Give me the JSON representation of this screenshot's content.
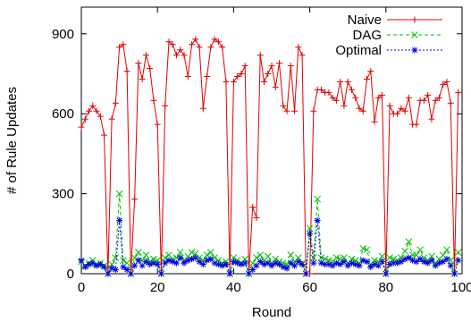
{
  "chart_data": {
    "type": "line",
    "xlabel": "Round",
    "ylabel": "# of Rule Updates",
    "xlim": [
      0,
      100
    ],
    "ylim": [
      0,
      1000
    ],
    "x_ticks": [
      "0",
      "20",
      "40",
      "60",
      "80",
      "100"
    ],
    "y_ticks": [
      "0",
      "300",
      "600",
      "900"
    ],
    "x_tick_values": [
      0,
      20,
      40,
      60,
      80,
      100
    ],
    "y_tick_values": [
      0,
      300,
      600,
      900
    ],
    "grid": false,
    "legend_position": "top-right",
    "series": [
      {
        "name": "Naive",
        "color": "#e00000",
        "dash": "",
        "marker": "plus",
        "x": [
          0,
          1,
          2,
          3,
          4,
          5,
          6,
          7,
          8,
          9,
          10,
          11,
          12,
          13,
          14,
          15,
          16,
          17,
          18,
          19,
          20,
          21,
          22,
          23,
          24,
          25,
          26,
          27,
          28,
          29,
          30,
          31,
          32,
          33,
          34,
          35,
          36,
          37,
          38,
          39,
          40,
          41,
          42,
          43,
          44,
          45,
          46,
          47,
          48,
          49,
          50,
          51,
          52,
          53,
          54,
          55,
          56,
          57,
          58,
          59,
          60,
          61,
          62,
          63,
          64,
          65,
          66,
          67,
          68,
          69,
          70,
          71,
          72,
          73,
          74,
          75,
          76,
          77,
          78,
          79,
          80,
          81,
          82,
          83,
          84,
          85,
          86,
          87,
          88,
          89,
          90,
          91,
          92,
          93,
          94,
          95,
          96,
          97,
          98,
          99
        ],
        "values": [
          550,
          580,
          610,
          630,
          610,
          590,
          520,
          0,
          580,
          640,
          850,
          860,
          760,
          0,
          280,
          790,
          730,
          820,
          770,
          650,
          560,
          0,
          630,
          870,
          860,
          820,
          840,
          820,
          740,
          860,
          880,
          850,
          620,
          740,
          850,
          880,
          870,
          850,
          720,
          0,
          720,
          740,
          750,
          780,
          0,
          250,
          210,
          820,
          720,
          750,
          780,
          700,
          790,
          630,
          610,
          780,
          610,
          850,
          820,
          0,
          0,
          610,
          690,
          690,
          680,
          680,
          660,
          650,
          720,
          630,
          720,
          690,
          660,
          620,
          610,
          730,
          760,
          570,
          660,
          670,
          0,
          630,
          600,
          600,
          620,
          610,
          660,
          560,
          560,
          650,
          650,
          670,
          580,
          650,
          660,
          710,
          720,
          640,
          0,
          680
        ]
      },
      {
        "name": "DAG",
        "color": "#00c000",
        "dash": "4,3",
        "marker": "x",
        "x": [
          0,
          1,
          2,
          3,
          4,
          5,
          6,
          7,
          8,
          9,
          10,
          11,
          12,
          13,
          14,
          15,
          16,
          17,
          18,
          19,
          20,
          21,
          22,
          23,
          24,
          25,
          26,
          27,
          28,
          29,
          30,
          31,
          32,
          33,
          34,
          35,
          36,
          37,
          38,
          39,
          40,
          41,
          42,
          43,
          44,
          45,
          46,
          47,
          48,
          49,
          50,
          51,
          52,
          53,
          54,
          55,
          56,
          57,
          58,
          59,
          60,
          61,
          62,
          63,
          64,
          65,
          66,
          67,
          68,
          69,
          70,
          71,
          72,
          73,
          74,
          75,
          76,
          77,
          78,
          79,
          80,
          81,
          82,
          83,
          84,
          85,
          86,
          87,
          88,
          89,
          90,
          91,
          92,
          93,
          94,
          95,
          96,
          97,
          98,
          99
        ],
        "values": [
          45,
          30,
          40,
          50,
          35,
          40,
          30,
          0,
          35,
          60,
          300,
          50,
          40,
          0,
          60,
          80,
          50,
          70,
          45,
          55,
          50,
          0,
          60,
          70,
          55,
          60,
          80,
          50,
          65,
          80,
          75,
          60,
          50,
          70,
          80,
          60,
          50,
          40,
          45,
          0,
          60,
          50,
          40,
          55,
          0,
          40,
          60,
          70,
          50,
          65,
          40,
          55,
          45,
          40,
          35,
          70,
          45,
          60,
          40,
          0,
          170,
          60,
          280,
          60,
          55,
          50,
          45,
          60,
          55,
          60,
          40,
          55,
          50,
          40,
          95,
          90,
          35,
          50,
          45,
          65,
          0,
          60,
          55,
          50,
          60,
          85,
          120,
          70,
          70,
          90,
          60,
          50,
          65,
          40,
          55,
          70,
          90,
          50,
          0,
          80
        ]
      },
      {
        "name": "Optimal",
        "color": "#0000e0",
        "dash": "2,2",
        "marker": "star",
        "x": [
          0,
          1,
          2,
          3,
          4,
          5,
          6,
          7,
          8,
          9,
          10,
          11,
          12,
          13,
          14,
          15,
          16,
          17,
          18,
          19,
          20,
          21,
          22,
          23,
          24,
          25,
          26,
          27,
          28,
          29,
          30,
          31,
          32,
          33,
          34,
          35,
          36,
          37,
          38,
          39,
          40,
          41,
          42,
          43,
          44,
          45,
          46,
          47,
          48,
          49,
          50,
          51,
          52,
          53,
          54,
          55,
          56,
          57,
          58,
          59,
          60,
          61,
          62,
          63,
          64,
          65,
          66,
          67,
          68,
          69,
          70,
          71,
          72,
          73,
          74,
          75,
          76,
          77,
          78,
          79,
          80,
          81,
          82,
          83,
          84,
          85,
          86,
          87,
          88,
          89,
          90,
          91,
          92,
          93,
          94,
          95,
          96,
          97,
          98,
          99
        ],
        "values": [
          50,
          25,
          35,
          40,
          30,
          35,
          25,
          0,
          20,
          15,
          200,
          25,
          15,
          0,
          30,
          50,
          30,
          45,
          35,
          40,
          35,
          0,
          40,
          50,
          45,
          40,
          60,
          40,
          50,
          55,
          60,
          45,
          35,
          50,
          55,
          40,
          35,
          30,
          35,
          0,
          45,
          40,
          35,
          40,
          0,
          15,
          30,
          45,
          35,
          40,
          30,
          40,
          35,
          25,
          20,
          40,
          30,
          45,
          35,
          0,
          150,
          40,
          200,
          40,
          35,
          35,
          30,
          40,
          35,
          45,
          30,
          40,
          35,
          30,
          50,
          45,
          25,
          35,
          30,
          45,
          0,
          35,
          40,
          40,
          45,
          55,
          60,
          50,
          45,
          55,
          45,
          40,
          50,
          30,
          40,
          45,
          55,
          30,
          0,
          50
        ]
      }
    ]
  }
}
